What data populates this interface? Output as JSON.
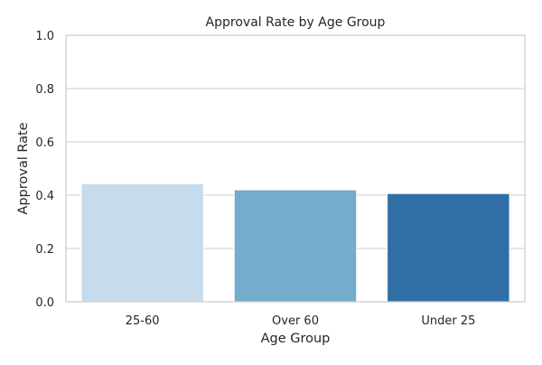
{
  "chart_data": {
    "type": "bar",
    "title": "Approval Rate by Age Group",
    "xlabel": "Age Group",
    "ylabel": "Approval Rate",
    "categories": [
      "25-60",
      "Over 60",
      "Under 25"
    ],
    "values": [
      0.443,
      0.42,
      0.406
    ],
    "colors": [
      "#c6dbec",
      "#75abcb",
      "#2f6fa6"
    ],
    "ylim": [
      0,
      1.0
    ],
    "yticks": [
      "0.0",
      "0.2",
      "0.4",
      "0.6",
      "0.8",
      "1.0"
    ],
    "grid": true,
    "grid_color": "#cccccc",
    "spine_color": "#cccccc"
  }
}
